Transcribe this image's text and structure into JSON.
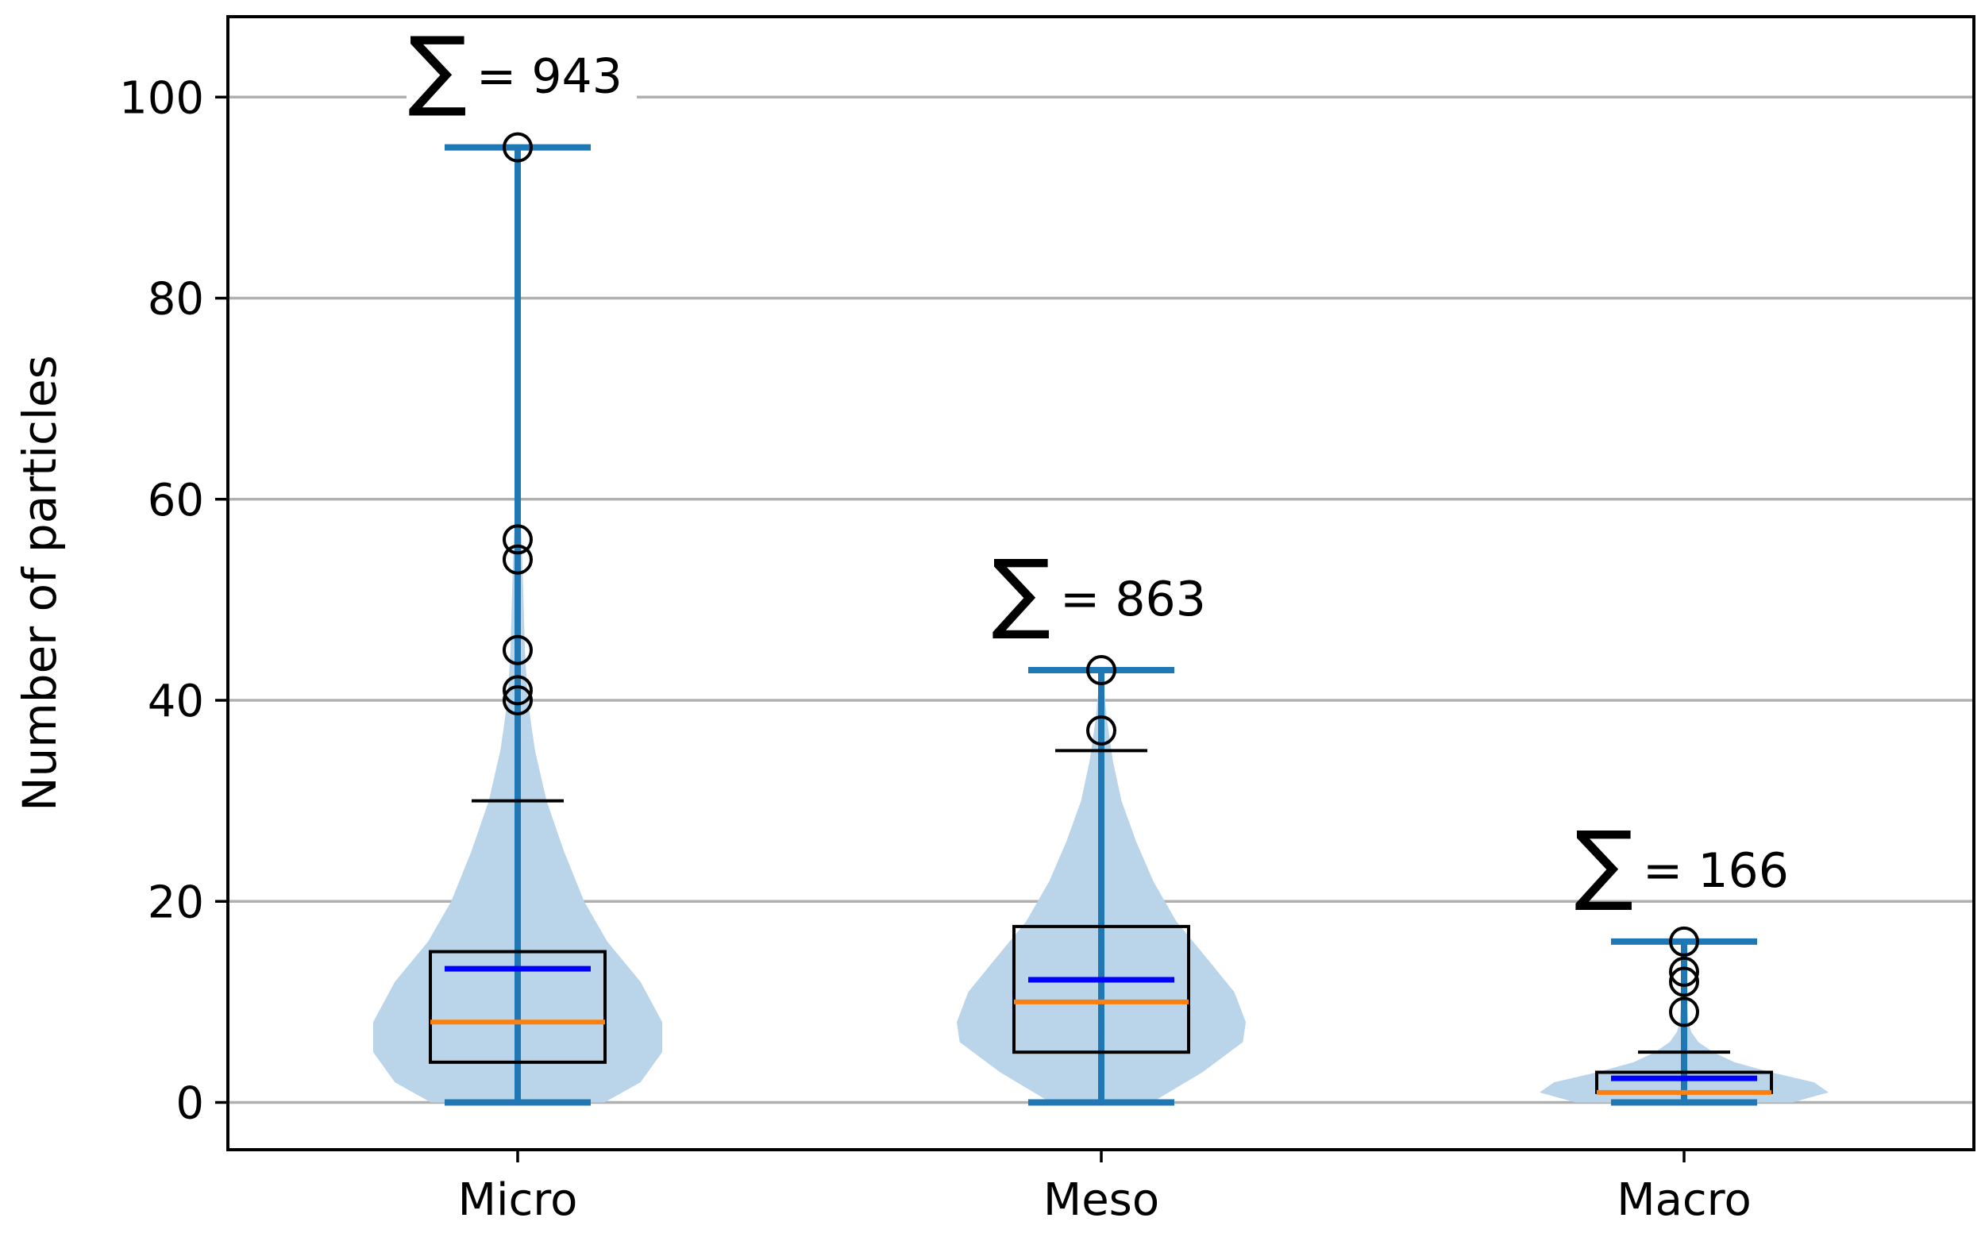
{
  "chart_data": {
    "type": "violin",
    "title": "",
    "xlabel": "",
    "ylabel": "Number of particles",
    "ylim": [
      -4.7,
      108
    ],
    "yticks": [
      0,
      20,
      40,
      60,
      80,
      100
    ],
    "grid": "horizontal",
    "categories": [
      "Micro",
      "Meso",
      "Macro"
    ],
    "colors": {
      "violin_fill": "#bad4ea",
      "violin_lines": "#1f77b4",
      "median": "#ff7f0e",
      "mean": "#0000ff",
      "box": "#000000",
      "grid": "#b0b0b0"
    },
    "groups": [
      {
        "name": "Micro",
        "sum_label": "= 943",
        "min": 0,
        "max": 95,
        "q1": 4,
        "median": 8,
        "q3": 15,
        "mean": 13.3,
        "whisker_high": 30,
        "outliers": [
          95,
          56,
          54,
          45,
          41,
          40
        ],
        "density": [
          [
            0,
            0.6
          ],
          [
            2,
            0.85
          ],
          [
            5,
            1.0
          ],
          [
            8,
            1.0
          ],
          [
            12,
            0.85
          ],
          [
            16,
            0.62
          ],
          [
            20,
            0.46
          ],
          [
            25,
            0.32
          ],
          [
            30,
            0.2
          ],
          [
            35,
            0.12
          ],
          [
            40,
            0.07
          ],
          [
            45,
            0.05
          ],
          [
            50,
            0.04
          ],
          [
            55,
            0.03
          ],
          [
            60,
            0.015
          ],
          [
            65,
            0.005
          ]
        ]
      },
      {
        "name": "Meso",
        "sum_label": "= 863",
        "min": 0,
        "max": 43,
        "q1": 5,
        "median": 10,
        "q3": 17.5,
        "mean": 12.2,
        "whisker_high": 35,
        "outliers": [
          43,
          37
        ],
        "density": [
          [
            0,
            0.35
          ],
          [
            3,
            0.7
          ],
          [
            6,
            0.98
          ],
          [
            8,
            1.0
          ],
          [
            11,
            0.92
          ],
          [
            14,
            0.75
          ],
          [
            18,
            0.52
          ],
          [
            22,
            0.36
          ],
          [
            26,
            0.24
          ],
          [
            30,
            0.14
          ],
          [
            34,
            0.08
          ],
          [
            38,
            0.04
          ],
          [
            41,
            0.02
          ],
          [
            43,
            0.01
          ]
        ]
      },
      {
        "name": "Macro",
        "sum_label": "= 166",
        "min": 0,
        "max": 16,
        "q1": 1,
        "median": 1,
        "q3": 3,
        "mean": 2.4,
        "whisker_high": 5,
        "outliers": [
          16,
          13,
          12,
          9
        ],
        "density": [
          [
            0,
            0.75
          ],
          [
            1,
            1.0
          ],
          [
            2,
            0.9
          ],
          [
            3,
            0.6
          ],
          [
            4,
            0.35
          ],
          [
            5,
            0.2
          ],
          [
            6,
            0.1
          ],
          [
            7,
            0.05
          ],
          [
            8,
            0.03
          ],
          [
            10,
            0.02
          ],
          [
            12,
            0.015
          ],
          [
            14,
            0.01
          ],
          [
            16,
            0.005
          ]
        ]
      }
    ]
  }
}
